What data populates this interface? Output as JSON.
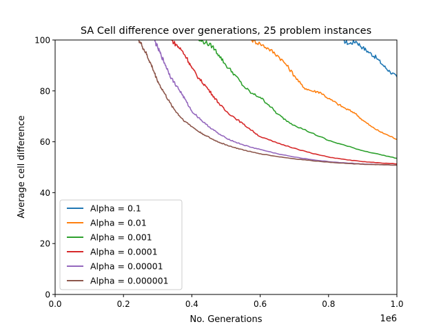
{
  "chart_data": {
    "type": "line",
    "title": "SA Cell difference over generations, 25 problem instances",
    "xlabel": "No. Generations",
    "ylabel": "Average cell difference",
    "x_offset_label": "1e6",
    "xlim": [
      0,
      1000000
    ],
    "ylim": [
      0,
      100
    ],
    "xticks": [
      0,
      200000,
      400000,
      600000,
      800000,
      1000000
    ],
    "xtick_labels": [
      "0.0",
      "0.2",
      "0.4",
      "0.6",
      "0.8",
      "1.0"
    ],
    "yticks": [
      0,
      20,
      40,
      60,
      80,
      100
    ],
    "ytick_labels": [
      "0",
      "20",
      "40",
      "60",
      "80",
      "100"
    ],
    "grid": false,
    "legend_position": "lower-left",
    "series": [
      {
        "name": "Alpha = 0.1",
        "color": "#1f77b4",
        "x": [
          840000,
          860000,
          880000,
          900000,
          920000,
          940000,
          960000,
          980000,
          1000000
        ],
        "y": [
          100,
          98.5,
          99.5,
          97,
          95,
          93,
          90,
          87.5,
          85.5
        ]
      },
      {
        "name": "Alpha = 0.01",
        "color": "#ff7f0e",
        "x": [
          575000,
          600000,
          625000,
          650000,
          675000,
          700000,
          725000,
          750000,
          775000,
          800000,
          825000,
          850000,
          875000,
          900000,
          925000,
          950000,
          975000,
          1000000
        ],
        "y": [
          100,
          98.5,
          96.5,
          94,
          90.5,
          86,
          81.5,
          80,
          79.5,
          77,
          75,
          73,
          71.5,
          68.5,
          66,
          64,
          62.5,
          61
        ]
      },
      {
        "name": "Alpha = 0.001",
        "color": "#2ca02c",
        "x": [
          420000,
          440000,
          460000,
          480000,
          500000,
          525000,
          550000,
          575000,
          600000,
          625000,
          650000,
          675000,
          700000,
          750000,
          800000,
          850000,
          900000,
          950000,
          1000000
        ],
        "y": [
          100,
          99,
          97.5,
          94,
          90,
          86.5,
          82,
          79,
          77.5,
          74.5,
          71,
          68.5,
          66.5,
          63.5,
          60.5,
          58.5,
          56.5,
          55,
          53.5
        ]
      },
      {
        "name": "Alpha = 0.0001",
        "color": "#d62728",
        "x": [
          340000,
          355000,
          370000,
          385000,
          400000,
          420000,
          440000,
          460000,
          480000,
          500000,
          525000,
          550000,
          575000,
          600000,
          650000,
          700000,
          750000,
          800000,
          850000,
          900000,
          950000,
          1000000
        ],
        "y": [
          100,
          98,
          96,
          93,
          89,
          85,
          82,
          78.5,
          75,
          72,
          69.5,
          67,
          64.5,
          62,
          59.5,
          57.5,
          55.5,
          54,
          53,
          52.2,
          51.7,
          51.3
        ]
      },
      {
        "name": "Alpha = 0.00001",
        "color": "#9467bd",
        "x": [
          290000,
          300000,
          310000,
          320000,
          330000,
          340000,
          355000,
          370000,
          385000,
          400000,
          420000,
          440000,
          460000,
          480000,
          500000,
          525000,
          550000,
          575000,
          600000,
          650000,
          700000,
          750000,
          800000,
          850000,
          900000,
          950000,
          1000000
        ],
        "y": [
          100,
          97,
          94,
          91,
          88,
          85,
          82,
          79,
          75.5,
          72,
          69.5,
          67,
          65,
          63,
          61.5,
          60,
          58.8,
          57.8,
          57,
          55.3,
          54,
          53,
          52.2,
          51.7,
          51.3,
          51,
          50.8
        ]
      },
      {
        "name": "Alpha = 0.000001",
        "color": "#8c564b",
        "x": [
          245000,
          255000,
          265000,
          275000,
          285000,
          295000,
          305000,
          320000,
          335000,
          350000,
          365000,
          380000,
          400000,
          420000,
          440000,
          460000,
          480000,
          500000,
          525000,
          550000,
          575000,
          600000,
          650000,
          700000,
          750000,
          800000,
          850000,
          900000,
          950000,
          1000000
        ],
        "y": [
          100,
          97.5,
          95,
          92,
          89,
          85.5,
          82.5,
          79,
          75.5,
          72.5,
          70,
          68,
          66,
          64,
          62.5,
          61,
          59.8,
          58.8,
          57.7,
          56.8,
          56,
          55.3,
          54.2,
          53.3,
          52.6,
          52,
          51.5,
          51.2,
          51,
          50.8
        ]
      }
    ]
  }
}
